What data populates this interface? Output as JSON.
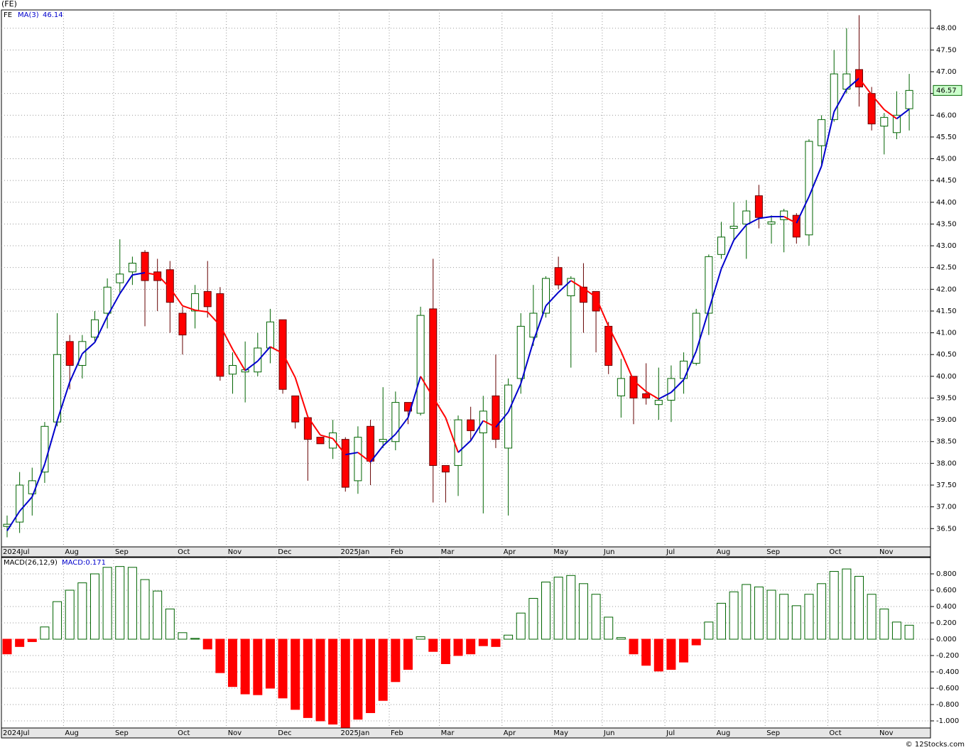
{
  "chart_data": [
    {
      "type": "candlestick",
      "title": "(FE)",
      "ticker": "FE",
      "categories": [
        "2024Jul",
        null,
        null,
        null,
        null,
        "Aug",
        null,
        null,
        null,
        "Sep",
        null,
        null,
        null,
        null,
        "Oct",
        null,
        null,
        null,
        "Nov",
        null,
        null,
        null,
        "Dec",
        null,
        null,
        null,
        null,
        "2025Jan",
        null,
        null,
        null,
        "Feb",
        null,
        null,
        null,
        "Mar",
        null,
        null,
        null,
        null,
        "Apr",
        null,
        null,
        null,
        "May",
        null,
        null,
        null,
        "Jun",
        null,
        null,
        null,
        null,
        "Jul",
        null,
        null,
        null,
        "Aug",
        null,
        null,
        null,
        "Sep",
        null,
        null,
        null,
        null,
        "Oct",
        null,
        null,
        null,
        "Nov",
        null,
        null
      ],
      "open": [
        36.55,
        36.65,
        37.3,
        37.8,
        38.95,
        40.8,
        40.25,
        40.9,
        41.45,
        42.15,
        42.4,
        42.85,
        42.4,
        42.45,
        41.45,
        41.5,
        41.95,
        41.9,
        40.05,
        40.1,
        40.1,
        40.65,
        41.3,
        39.55,
        39.05,
        38.6,
        38.35,
        38.55,
        37.6,
        38.85,
        38.5,
        38.5,
        39.4,
        39.15,
        41.55,
        37.95,
        37.95,
        39.0,
        38.7,
        39.55,
        38.35,
        39.95,
        40.9,
        41.45,
        42.5,
        41.85,
        42.05,
        41.95,
        41.15,
        39.55,
        40.0,
        39.6,
        39.35,
        39.45,
        39.95,
        40.3,
        41.45,
        42.8,
        43.4,
        43.5,
        44.15,
        43.5,
        43.6,
        43.7,
        43.25,
        45.3,
        45.9,
        46.6,
        47.05,
        46.5,
        45.75,
        45.6,
        46.15
      ],
      "high": [
        36.8,
        37.8,
        37.9,
        38.95,
        41.45,
        40.95,
        40.95,
        41.5,
        42.25,
        43.15,
        42.75,
        42.9,
        42.7,
        42.65,
        41.6,
        42.1,
        42.65,
        42.05,
        40.55,
        40.8,
        41.0,
        41.55,
        41.3,
        39.55,
        39.05,
        38.6,
        39.0,
        38.6,
        38.85,
        39.0,
        39.75,
        39.65,
        39.4,
        41.6,
        42.7,
        37.95,
        39.1,
        39.3,
        39.55,
        40.5,
        39.95,
        41.45,
        42.1,
        42.3,
        42.75,
        42.3,
        42.6,
        41.95,
        41.25,
        40.4,
        40.0,
        40.3,
        40.2,
        40.25,
        40.55,
        41.55,
        42.8,
        43.55,
        44.0,
        44.05,
        44.4,
        43.7,
        43.85,
        43.75,
        45.45,
        46.0,
        47.5,
        48.0,
        48.3,
        46.65,
        46.05,
        46.55,
        46.95
      ],
      "low": [
        36.3,
        36.4,
        36.8,
        37.55,
        38.85,
        39.7,
        39.95,
        40.8,
        41.1,
        41.9,
        42.1,
        41.15,
        41.5,
        41.0,
        40.5,
        41.1,
        41.35,
        39.9,
        39.6,
        39.4,
        40.0,
        40.3,
        39.6,
        38.8,
        37.6,
        38.45,
        38.1,
        37.35,
        37.3,
        37.5,
        38.35,
        38.3,
        38.9,
        39.1,
        37.1,
        37.1,
        37.25,
        38.5,
        36.85,
        38.35,
        36.8,
        39.6,
        40.7,
        41.35,
        42.0,
        40.2,
        41.0,
        40.55,
        40.05,
        39.05,
        38.9,
        39.35,
        39.0,
        38.95,
        39.6,
        40.25,
        40.95,
        42.7,
        43.1,
        42.7,
        43.4,
        43.05,
        42.85,
        43.05,
        43.0,
        44.85,
        45.85,
        46.5,
        46.2,
        45.65,
        45.1,
        45.45,
        45.65
      ],
      "close": [
        36.6,
        37.5,
        37.6,
        38.85,
        40.5,
        40.25,
        40.8,
        41.3,
        42.05,
        42.35,
        42.6,
        42.2,
        42.2,
        41.7,
        40.95,
        41.9,
        41.6,
        40.0,
        40.25,
        40.15,
        40.65,
        41.25,
        39.7,
        38.95,
        38.55,
        38.45,
        38.7,
        37.45,
        38.6,
        38.05,
        38.55,
        39.4,
        39.2,
        41.4,
        37.95,
        37.8,
        39.0,
        38.75,
        39.2,
        38.55,
        39.8,
        41.15,
        41.45,
        42.25,
        42.1,
        42.25,
        41.7,
        41.5,
        40.25,
        39.95,
        39.5,
        39.5,
        39.45,
        39.95,
        40.35,
        41.45,
        42.75,
        43.2,
        43.45,
        43.8,
        43.65,
        43.55,
        43.8,
        43.2,
        45.4,
        45.9,
        46.95,
        46.95,
        46.65,
        45.8,
        45.95,
        46.0,
        46.57
      ],
      "up_color": "#ffffff",
      "down_color": "#ff0000",
      "up_edge": "#006400",
      "down_edge": "#660000",
      "series": [
        {
          "name": "MA(3)",
          "color": "#0000cc",
          "down_color": "#ff0000",
          "values": [
            36.45,
            36.9,
            37.23,
            37.98,
            38.98,
            39.87,
            40.52,
            40.78,
            41.38,
            41.9,
            42.33,
            42.38,
            42.33,
            42.03,
            41.62,
            41.52,
            41.48,
            41.17,
            40.62,
            40.13,
            40.35,
            40.68,
            40.53,
            39.97,
            39.07,
            38.65,
            38.57,
            38.2,
            38.25,
            38.03,
            38.4,
            38.67,
            39.05,
            40.0,
            39.52,
            39.05,
            38.25,
            38.52,
            38.98,
            38.83,
            39.18,
            39.83,
            40.8,
            41.62,
            41.93,
            42.2,
            42.02,
            41.82,
            41.15,
            40.57,
            39.9,
            39.65,
            39.48,
            39.63,
            39.92,
            40.58,
            41.52,
            42.47,
            43.13,
            43.48,
            43.63,
            43.67,
            43.67,
            43.52,
            44.13,
            44.83,
            46.08,
            46.6,
            46.85,
            46.47,
            46.13,
            45.92,
            46.14
          ]
        }
      ],
      "ylim": [
        36.08,
        48.42
      ],
      "yticks": [
        {
          "value": 36.5,
          "label": "36.50"
        },
        {
          "value": 37,
          "label": "37.00"
        },
        {
          "value": 37.5,
          "label": "37.50"
        },
        {
          "value": 38,
          "label": "38.00"
        },
        {
          "value": 38.5,
          "label": "38.50"
        },
        {
          "value": 39,
          "label": "39.00"
        },
        {
          "value": 39.5,
          "label": "39.50"
        },
        {
          "value": 40,
          "label": "40.00"
        },
        {
          "value": 40.5,
          "label": "40.50"
        },
        {
          "value": 41,
          "label": "41.00"
        },
        {
          "value": 41.5,
          "label": "41.50"
        },
        {
          "value": 42,
          "label": "42.00"
        },
        {
          "value": 42.5,
          "label": "42.50"
        },
        {
          "value": 43,
          "label": "43.00"
        },
        {
          "value": 43.5,
          "label": "43.50"
        },
        {
          "value": 44,
          "label": "44.00"
        },
        {
          "value": 44.5,
          "label": "44.50"
        },
        {
          "value": 45,
          "label": "45.00"
        },
        {
          "value": 45.5,
          "label": "45.50"
        },
        {
          "value": 46,
          "label": "46.00"
        },
        {
          "value": 46.5,
          "label": "46.50"
        },
        {
          "value": 47,
          "label": "47.00"
        },
        {
          "value": 47.5,
          "label": "47.50"
        },
        {
          "value": 48,
          "label": "48.00"
        }
      ],
      "grid": true
    },
    {
      "type": "bar",
      "title": "MACD(26,12,9)",
      "legend": "MACD:0.171",
      "categories": [
        "2024Jul",
        null,
        null,
        null,
        null,
        "Aug",
        null,
        null,
        null,
        "Sep",
        null,
        null,
        null,
        null,
        "Oct",
        null,
        null,
        null,
        "Nov",
        null,
        null,
        null,
        "Dec",
        null,
        null,
        null,
        null,
        "2025Jan",
        null,
        null,
        null,
        "Feb",
        null,
        null,
        null,
        "Mar",
        null,
        null,
        null,
        null,
        "Apr",
        null,
        null,
        null,
        "May",
        null,
        null,
        null,
        "Jun",
        null,
        null,
        null,
        null,
        "Jul",
        null,
        null,
        null,
        "Aug",
        null,
        null,
        null,
        "Sep",
        null,
        null,
        null,
        null,
        "Oct",
        null,
        null,
        null,
        "Nov",
        null,
        null
      ],
      "values": [
        -0.18,
        -0.09,
        -0.03,
        0.15,
        0.46,
        0.6,
        0.69,
        0.8,
        0.88,
        0.89,
        0.88,
        0.73,
        0.59,
        0.37,
        0.08,
        0.01,
        -0.12,
        -0.41,
        -0.58,
        -0.67,
        -0.68,
        -0.6,
        -0.72,
        -0.86,
        -0.96,
        -1.0,
        -1.04,
        -1.08,
        -0.98,
        -0.9,
        -0.75,
        -0.52,
        -0.37,
        0.03,
        -0.15,
        -0.3,
        -0.2,
        -0.18,
        -0.08,
        -0.09,
        0.05,
        0.32,
        0.5,
        0.7,
        0.76,
        0.78,
        0.68,
        0.55,
        0.27,
        0.02,
        -0.18,
        -0.32,
        -0.39,
        -0.37,
        -0.28,
        -0.07,
        0.21,
        0.44,
        0.58,
        0.67,
        0.64,
        0.6,
        0.55,
        0.41,
        0.55,
        0.68,
        0.83,
        0.86,
        0.77,
        0.55,
        0.37,
        0.21,
        0.171
      ],
      "up_color": "#006400",
      "down_color": "#ff0000",
      "ylim": [
        -1.087,
        1.0
      ],
      "yticks": [
        {
          "value": 0.8,
          "label": "0.800"
        },
        {
          "value": 0.6,
          "label": "0.600"
        },
        {
          "value": 0.4,
          "label": "0.400"
        },
        {
          "value": 0.2,
          "label": "0.200"
        },
        {
          "value": 0,
          "label": "0.000"
        },
        {
          "value": -0.2,
          "label": "-0.200"
        },
        {
          "value": -0.4,
          "label": "-0.400"
        },
        {
          "value": -0.6,
          "label": "-0.600"
        },
        {
          "value": -0.8,
          "label": "-0.800"
        },
        {
          "value": -1,
          "label": "-1.000"
        }
      ],
      "grid": true
    }
  ],
  "source": "© 12Stocks.com"
}
